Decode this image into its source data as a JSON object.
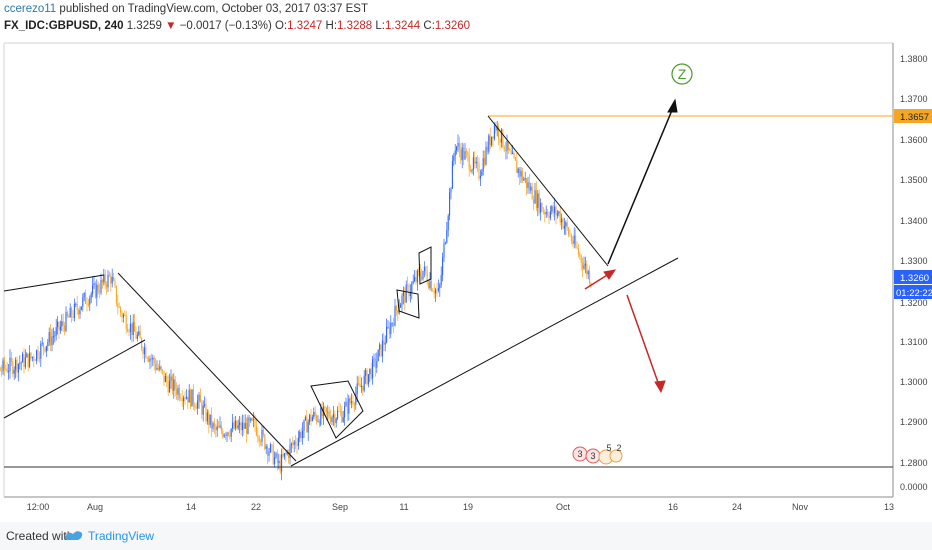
{
  "header": {
    "user": "ccerezo11",
    "published_text": "published on TradingView.com, October 03, 2017 03:37 EST",
    "symbol": "FX_IDC:GBPUSD, 240",
    "last": "1.3259",
    "change_arrow": "▼",
    "change": "−0.0017 (−0.13%)",
    "o_label": "O:",
    "o_value": "1.3247",
    "h_label": "H:",
    "h_value": "1.3288",
    "l_label": "L:",
    "l_value": "1.3244",
    "c_label": "C:",
    "c_value": "1.3260"
  },
  "price_axis": {
    "ticks": [
      "1.3800",
      "1.3700",
      "1.3600",
      "1.3500",
      "1.3400",
      "1.3300",
      "1.3200",
      "1.3100",
      "1.3000",
      "1.2900",
      "1.2800",
      "0.0000"
    ],
    "level_label": "1.3657",
    "price_label": "1.3260",
    "countdown": "01:22:22"
  },
  "time_axis": {
    "ticks": [
      "12:00",
      "Aug",
      "14",
      "22",
      "Sep",
      "11",
      "19",
      "Oct",
      "16",
      "24",
      "Nov",
      "13"
    ]
  },
  "annotation": {
    "wave_label": "Z",
    "event_markers": [
      "3",
      "3",
      "5",
      "2"
    ]
  },
  "colors": {
    "up": "#2962ff",
    "down": "#f5a623",
    "level": "#f5a623",
    "arrow_up": "#000000",
    "arrow_down": "#c62828"
  },
  "footer": {
    "created_with": "Created with",
    "brand": "TradingView"
  },
  "chart_data": {
    "type": "candlestick",
    "symbol": "GBPUSD",
    "timeframe": "240",
    "ylim": [
      1.274,
      1.386
    ],
    "series": [
      {
        "date": "2017-07-17",
        "close": 1.3015
      },
      {
        "date": "2017-07-20",
        "close": 1.3035
      },
      {
        "date": "2017-07-24",
        "close": 1.3065
      },
      {
        "date": "2017-07-27",
        "close": 1.3125
      },
      {
        "date": "2017-07-31",
        "close": 1.3215
      },
      {
        "date": "2017-08-03",
        "close": 1.3265
      },
      {
        "date": "2017-08-04",
        "close": 1.3185
      },
      {
        "date": "2017-08-07",
        "close": 1.3095
      },
      {
        "date": "2017-08-10",
        "close": 1.3005
      },
      {
        "date": "2017-08-14",
        "close": 1.2955
      },
      {
        "date": "2017-08-16",
        "close": 1.2885
      },
      {
        "date": "2017-08-21",
        "close": 1.29
      },
      {
        "date": "2017-08-24",
        "close": 1.28
      },
      {
        "date": "2017-08-28",
        "close": 1.292
      },
      {
        "date": "2017-09-01",
        "close": 1.293
      },
      {
        "date": "2017-09-05",
        "close": 1.305
      },
      {
        "date": "2017-09-08",
        "close": 1.32
      },
      {
        "date": "2017-09-11",
        "close": 1.328
      },
      {
        "date": "2017-09-13",
        "close": 1.322
      },
      {
        "date": "2017-09-15",
        "close": 1.359
      },
      {
        "date": "2017-09-18",
        "close": 1.352
      },
      {
        "date": "2017-09-20",
        "close": 1.364
      },
      {
        "date": "2017-09-22",
        "close": 1.3555
      },
      {
        "date": "2017-09-26",
        "close": 1.343
      },
      {
        "date": "2017-09-28",
        "close": 1.342
      },
      {
        "date": "2017-10-02",
        "close": 1.326
      }
    ],
    "drawings": {
      "horizontal_levels": [
        1.3657,
        1.278
      ],
      "projection": [
        "up to 1.3700",
        "down to 1.2990"
      ]
    }
  }
}
